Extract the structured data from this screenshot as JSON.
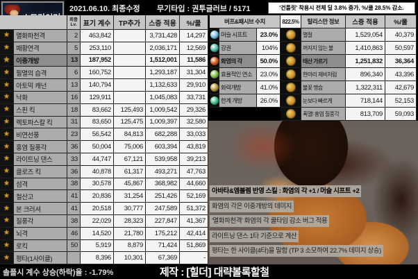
{
  "header": {
    "logo_title": "스트라이커",
    "date_label": "2021.06.10. 최종수정",
    "weapon_label": "무기타입 : 권투글러브 / 5171",
    "gauntlet_note": "'건틀릿' 착용시 전체 딜 3.8% 증가, %/쿨 28.5% 감소."
  },
  "skill_table": {
    "icon_glyph": "★",
    "columns": {
      "level_line1": "최종",
      "level_line2": "Lv.",
      "coef": "표기 계수",
      "tp": "TP추가",
      "damage": "스증 적용",
      "per_cool": "%/쿨"
    },
    "rows": [
      {
        "name": "멸화파천격",
        "level": "2",
        "coef": "463,842",
        "tp": "",
        "damage": "3,731,428",
        "per_cool": "14,297",
        "highlight": false
      },
      {
        "name": "패황연격",
        "level": "5",
        "coef": "253,110",
        "tp": "",
        "damage": "2,036,171",
        "per_cool": "12,569",
        "highlight": false
      },
      {
        "name": "이중개방",
        "level": "13",
        "coef": "187,952",
        "tp": "",
        "damage": "1,512,001",
        "per_cool": "11,586",
        "highlight": true
      },
      {
        "name": "필멸의 습격",
        "level": "6",
        "coef": "160,752",
        "tp": "",
        "damage": "1,293,187",
        "per_cool": "31,304",
        "highlight": false
      },
      {
        "name": "아토믹 캐넌",
        "level": "13",
        "coef": "140,794",
        "tp": "",
        "damage": "1,132,633",
        "per_cool": "29,910",
        "highlight": false
      },
      {
        "name": "낙화",
        "level": "16",
        "coef": "129,911",
        "tp": "",
        "damage": "1,045,083",
        "per_cool": "33,731",
        "highlight": false
      },
      {
        "name": "스핀 킥",
        "level": "18",
        "coef": "83,662",
        "tp": "125,493",
        "damage": "1,009,542",
        "per_cool": "29,326",
        "highlight": false
      },
      {
        "name": "렉토파스칼 킥",
        "level": "31",
        "coef": "83,650",
        "tp": "125,475",
        "damage": "1,009,397",
        "per_cool": "32,580",
        "highlight": false
      },
      {
        "name": "비연선풍",
        "level": "23",
        "coef": "56,542",
        "tp": "84,813",
        "damage": "682,288",
        "per_cool": "33,033",
        "highlight": false
      },
      {
        "name": "홍염 질풍각",
        "level": "36",
        "coef": "50,004",
        "tp": "75,006",
        "damage": "603,394",
        "per_cool": "43,819",
        "highlight": false
      },
      {
        "name": "라이트닝 댄스",
        "level": "33",
        "coef": "44,747",
        "tp": "67,121",
        "damage": "539,958",
        "per_cool": "39,213",
        "highlight": false
      },
      {
        "name": "클로즈 킥",
        "level": "36",
        "coef": "40,878",
        "tp": "61,317",
        "damage": "493,271",
        "per_cool": "47,763",
        "highlight": false
      },
      {
        "name": "섬격",
        "level": "38",
        "coef": "30,578",
        "tp": "45,867",
        "damage": "368,982",
        "per_cool": "44,660",
        "highlight": false
      },
      {
        "name": "철산고",
        "level": "41",
        "coef": "20,836",
        "tp": "31,254",
        "damage": "251,426",
        "per_cool": "52,169",
        "highlight": false
      },
      {
        "name": "본 크러셔",
        "level": "41",
        "coef": "20,518",
        "tp": "30,777",
        "damage": "247,589",
        "per_cool": "51,372",
        "highlight": false
      },
      {
        "name": "질풍각",
        "level": "38",
        "coef": "22,029",
        "tp": "28,323",
        "damage": "227,847",
        "per_cool": "41,367",
        "highlight": false
      },
      {
        "name": "뇌격",
        "level": "46",
        "coef": "14,520",
        "tp": "21,780",
        "damage": "175,212",
        "per_cool": "42,414",
        "highlight": false
      },
      {
        "name": "로킥",
        "level": "50",
        "coef": "5,919",
        "tp": "8,879",
        "damage": "71,424",
        "per_cool": "51,869",
        "highlight": false
      },
      {
        "name": "평타(1사이클)",
        "level": "",
        "coef": "8,396",
        "tp": "10,301",
        "damage": "67,369",
        "per_cool": "-",
        "highlight": false
      }
    ]
  },
  "buff_table": {
    "header": {
      "buff": "버프&패시브 수치",
      "buff_value": "822.5%",
      "talisman": "탈리스만 정보",
      "damage": "스증 적용",
      "per_cool": "%/쿨"
    },
    "rows": [
      {
        "buff": "머슬 시프트",
        "pct": "23.0%",
        "pct_bold": true,
        "highlight": false,
        "icon_color": "#7ec7e8",
        "talisman": "멸절",
        "damage": "1,529,054",
        "per_cool": "40,379"
      },
      {
        "buff": "강권",
        "pct": "104%",
        "pct_bold": false,
        "highlight": false,
        "icon_color": "#58c0a8",
        "talisman": "꺼지지 않는 불",
        "damage": "1,410,863",
        "per_cool": "50,597"
      },
      {
        "buff": "화염의 각",
        "pct": "50.0%",
        "pct_bold": true,
        "highlight": true,
        "icon_color": "#e06020",
        "talisman": "태산 가르기",
        "damage": "1,251,832",
        "per_cool": "36,364"
      },
      {
        "buff": "효율적인 연소",
        "pct": "23.0%",
        "pct_bold": false,
        "highlight": false,
        "icon_color": "#88c848",
        "talisman": "한마리 제비처럼",
        "damage": "896,340",
        "per_cool": "43,396"
      },
      {
        "buff": "화력개방",
        "pct": "41.0%",
        "pct_bold": false,
        "highlight": false,
        "icon_color": "#b8a040",
        "talisman": "불꽃 맹습",
        "damage": "1,322,311",
        "per_cool": "42,679"
      },
      {
        "buff": "한계 개방",
        "pct": "26.0%",
        "pct_bold": false,
        "highlight": false,
        "icon_color": "#48c890",
        "talisman": "눈보다 빠르게",
        "damage": "718,144",
        "per_cool": "52,153"
      },
      {
        "buff": "",
        "pct": "",
        "pct_bold": false,
        "highlight": false,
        "icon_color": "",
        "talisman": "폭멸! 홍염 질풍각",
        "damage": "813,709",
        "per_cool": "59,093"
      }
    ]
  },
  "notes": [
    "아바타&엠블렘 반영 스킬 : 화염의 각 +1 / 머슬 시프트 +2",
    "화염의 각은 이중개방의 데미지",
    "'멸화파천격' 화염의 각 쿨타임 감소 버그 적용",
    "라이트닝 댄스 1타 기준으로 계산",
    "평타는 한 사이클(4타)을 말함 (TP 3 소모하여 22.7% 데미지 상승)"
  ],
  "footer": {
    "solo_label": "솔플시 계수 상승(하락)율 : -1.79%",
    "credit_label": "제작 : [힐더] 대략볼록할철"
  },
  "colors": {
    "accent_gold": "#cf9b2c",
    "cell_gray": "#acacac",
    "cell_white": "#f4f4f4",
    "highlight_gray": "#8d8d8d",
    "header_gray": "#c6c6c6",
    "art_orange": "#c87b35",
    "art_background": "#6e645e",
    "logo_text": "#d6ecfa"
  }
}
